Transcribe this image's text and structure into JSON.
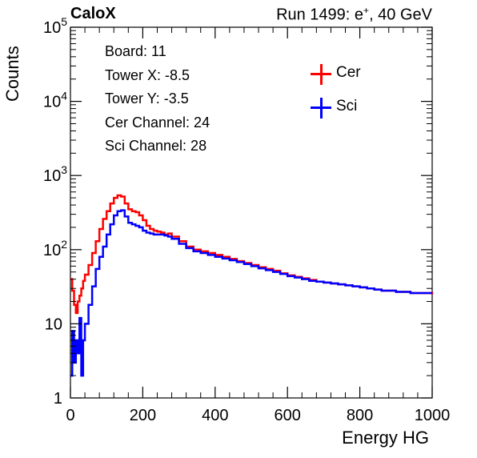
{
  "header": {
    "brand": "CaloX",
    "run_text": "Run 1499: e",
    "run_sup": "+",
    "run_tail": ", 40 GeV"
  },
  "info_box": {
    "lines": [
      "Board: 11",
      "Tower X: -8.5",
      "Tower Y: -3.5",
      "Cer Channel: 24",
      "Sci Channel: 28"
    ]
  },
  "chart_data": {
    "type": "line",
    "title": "",
    "xlabel": "Energy HG",
    "ylabel": "Counts",
    "xlim": [
      0,
      1000
    ],
    "ylim": [
      1,
      100000
    ],
    "y_scale": "log",
    "x_ticks": [
      "0",
      "200",
      "400",
      "600",
      "800",
      "1000"
    ],
    "y_ticks": [
      "1",
      "10",
      "10^2",
      "10^3",
      "10^4",
      "10^5"
    ],
    "legend_position": "top-right",
    "grid": false,
    "series": [
      {
        "name": "Cer",
        "color": "#ff0000",
        "points": [
          [
            0,
            40
          ],
          [
            5,
            28
          ],
          [
            10,
            18
          ],
          [
            15,
            14
          ],
          [
            20,
            20
          ],
          [
            25,
            24
          ],
          [
            30,
            30
          ],
          [
            35,
            38
          ],
          [
            40,
            46
          ],
          [
            50,
            62
          ],
          [
            60,
            90
          ],
          [
            70,
            130
          ],
          [
            80,
            190
          ],
          [
            90,
            260
          ],
          [
            100,
            330
          ],
          [
            110,
            420
          ],
          [
            120,
            500
          ],
          [
            130,
            540
          ],
          [
            140,
            520
          ],
          [
            150,
            420
          ],
          [
            160,
            350
          ],
          [
            170,
            330
          ],
          [
            180,
            320
          ],
          [
            190,
            290
          ],
          [
            200,
            250
          ],
          [
            210,
            210
          ],
          [
            220,
            190
          ],
          [
            230,
            180
          ],
          [
            240,
            175
          ],
          [
            250,
            170
          ],
          [
            260,
            160
          ],
          [
            270,
            165
          ],
          [
            280,
            150
          ],
          [
            300,
            130
          ],
          [
            320,
            110
          ],
          [
            340,
            100
          ],
          [
            360,
            95
          ],
          [
            380,
            90
          ],
          [
            400,
            85
          ],
          [
            420,
            80
          ],
          [
            440,
            75
          ],
          [
            460,
            70
          ],
          [
            480,
            66
          ],
          [
            500,
            62
          ],
          [
            520,
            58
          ],
          [
            540,
            55
          ],
          [
            560,
            52
          ],
          [
            580,
            48
          ],
          [
            600,
            45
          ],
          [
            620,
            43
          ],
          [
            640,
            41
          ],
          [
            660,
            39
          ],
          [
            680,
            37
          ],
          [
            700,
            36
          ],
          [
            720,
            35
          ],
          [
            740,
            34
          ],
          [
            760,
            33
          ],
          [
            780,
            32
          ],
          [
            800,
            31
          ],
          [
            820,
            30
          ],
          [
            840,
            29
          ],
          [
            860,
            28
          ],
          [
            880,
            28
          ],
          [
            900,
            27
          ],
          [
            920,
            27
          ],
          [
            940,
            26
          ],
          [
            960,
            26
          ],
          [
            980,
            26
          ],
          [
            1000,
            25
          ]
        ]
      },
      {
        "name": "Sci",
        "color": "#0000ff",
        "points": [
          [
            0,
            2
          ],
          [
            5,
            8
          ],
          [
            10,
            3
          ],
          [
            15,
            6
          ],
          [
            20,
            4
          ],
          [
            25,
            12
          ],
          [
            30,
            2
          ],
          [
            35,
            6
          ],
          [
            40,
            10
          ],
          [
            50,
            18
          ],
          [
            60,
            32
          ],
          [
            70,
            55
          ],
          [
            80,
            80
          ],
          [
            90,
            110
          ],
          [
            100,
            160
          ],
          [
            110,
            220
          ],
          [
            120,
            290
          ],
          [
            130,
            330
          ],
          [
            140,
            340
          ],
          [
            150,
            280
          ],
          [
            160,
            230
          ],
          [
            170,
            220
          ],
          [
            180,
            210
          ],
          [
            190,
            200
          ],
          [
            200,
            180
          ],
          [
            210,
            170
          ],
          [
            220,
            165
          ],
          [
            230,
            160
          ],
          [
            240,
            160
          ],
          [
            250,
            160
          ],
          [
            260,
            155
          ],
          [
            270,
            150
          ],
          [
            280,
            140
          ],
          [
            300,
            120
          ],
          [
            320,
            105
          ],
          [
            340,
            95
          ],
          [
            360,
            90
          ],
          [
            380,
            85
          ],
          [
            400,
            80
          ],
          [
            420,
            76
          ],
          [
            440,
            72
          ],
          [
            460,
            68
          ],
          [
            480,
            64
          ],
          [
            500,
            60
          ],
          [
            520,
            56
          ],
          [
            540,
            53
          ],
          [
            560,
            50
          ],
          [
            580,
            47
          ],
          [
            600,
            44
          ],
          [
            620,
            42
          ],
          [
            640,
            40
          ],
          [
            660,
            38
          ],
          [
            680,
            37
          ],
          [
            700,
            36
          ],
          [
            720,
            35
          ],
          [
            740,
            34
          ],
          [
            760,
            33
          ],
          [
            780,
            32
          ],
          [
            800,
            31
          ],
          [
            820,
            30
          ],
          [
            840,
            29
          ],
          [
            860,
            28
          ],
          [
            880,
            28
          ],
          [
            900,
            27
          ],
          [
            920,
            27
          ],
          [
            940,
            26
          ],
          [
            960,
            26
          ],
          [
            980,
            26
          ],
          [
            1000,
            26
          ]
        ]
      }
    ]
  }
}
